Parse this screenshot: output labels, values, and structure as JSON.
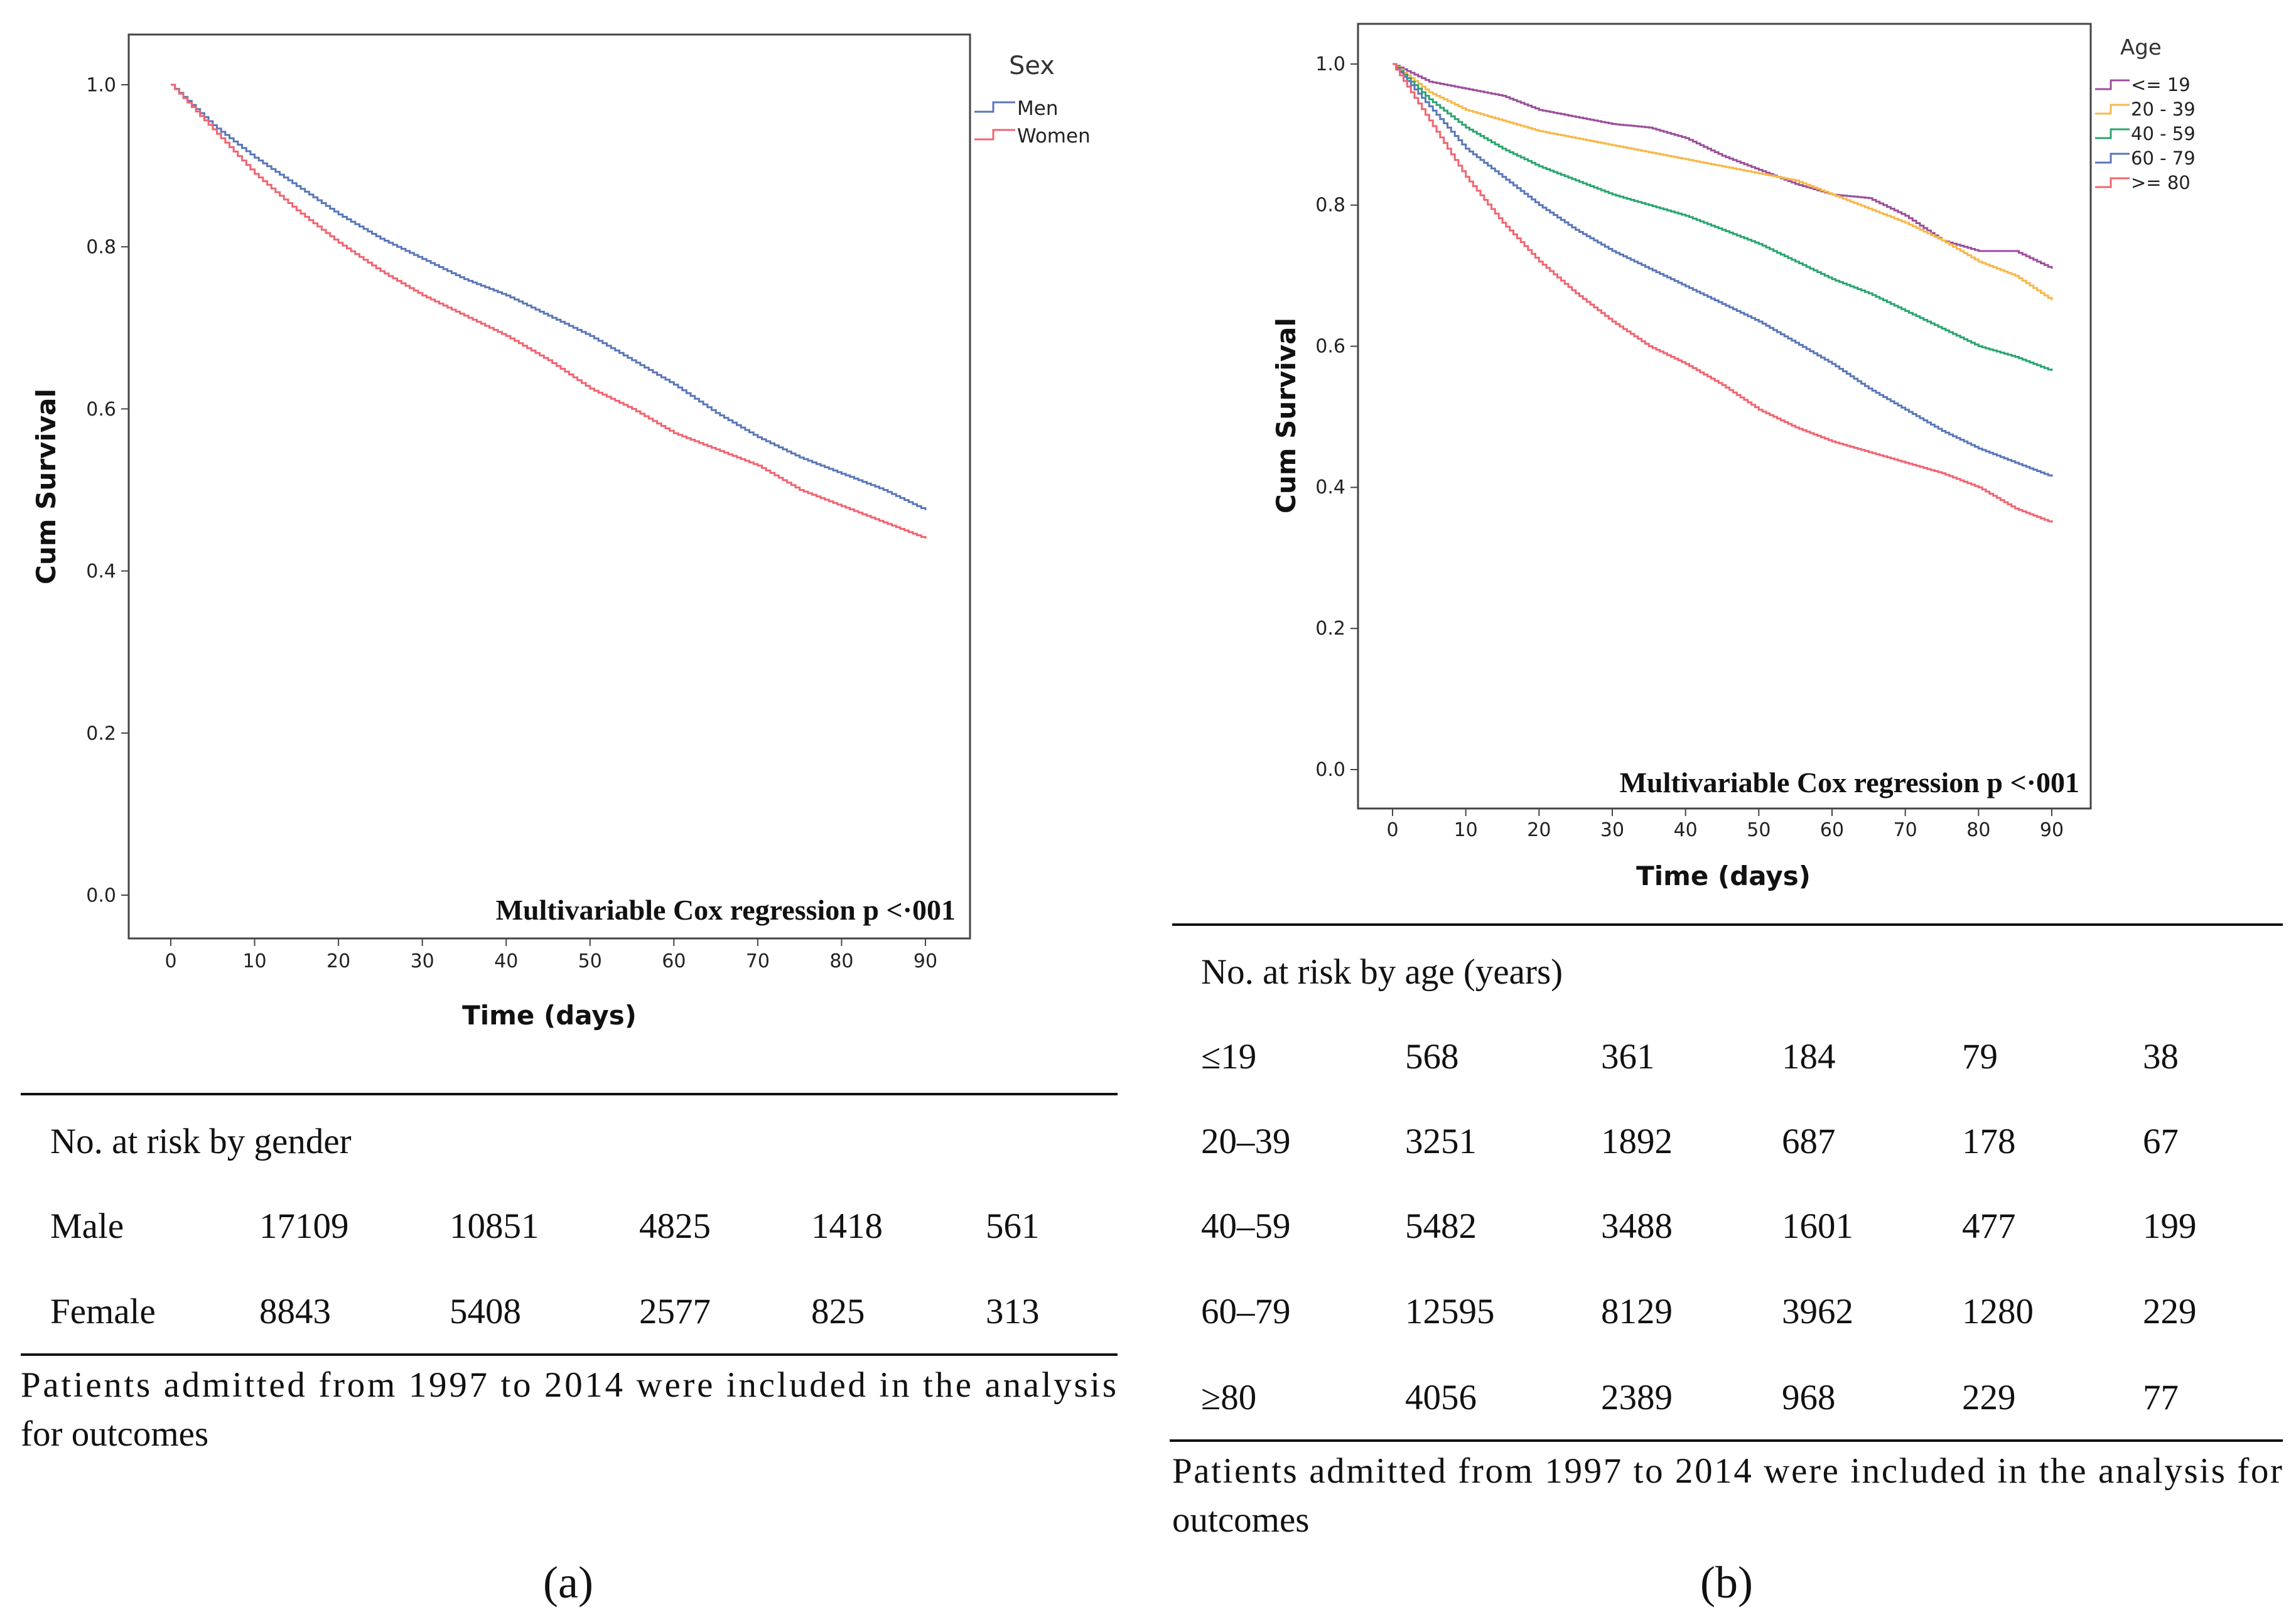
{
  "chart_data": [
    {
      "panel": "a",
      "type": "line",
      "step": true,
      "xlabel": "Time (days)",
      "ylabel": "Cum Survival",
      "xlim": [
        0,
        90
      ],
      "ylim": [
        0,
        1
      ],
      "xticks": [
        "0",
        "10",
        "20",
        "30",
        "40",
        "50",
        "60",
        "70",
        "80",
        "90"
      ],
      "yticks": [
        "0.0",
        "0.2",
        "0.4",
        "0.6",
        "0.8",
        "1.0"
      ],
      "legend_title": "Sex",
      "legend_position": "top-right outside",
      "annotation": "Multivariable Cox regression p <·001",
      "x": [
        0,
        5,
        10,
        15,
        20,
        25,
        30,
        35,
        40,
        45,
        50,
        55,
        60,
        65,
        70,
        75,
        80,
        85,
        90
      ],
      "series": [
        {
          "name": "Men",
          "color": "#5a77b8",
          "values": [
            1.0,
            0.95,
            0.91,
            0.875,
            0.84,
            0.81,
            0.785,
            0.76,
            0.74,
            0.715,
            0.69,
            0.66,
            0.63,
            0.595,
            0.565,
            0.54,
            0.52,
            0.5,
            0.475
          ]
        },
        {
          "name": "Women",
          "color": "#f06570",
          "values": [
            1.0,
            0.945,
            0.89,
            0.845,
            0.805,
            0.77,
            0.74,
            0.715,
            0.69,
            0.66,
            0.625,
            0.6,
            0.57,
            0.55,
            0.53,
            0.5,
            0.48,
            0.46,
            0.44
          ]
        }
      ]
    },
    {
      "panel": "b",
      "type": "line",
      "step": true,
      "xlabel": "Time (days)",
      "ylabel": "Cum Survival",
      "xlim": [
        0,
        90
      ],
      "ylim": [
        0,
        1
      ],
      "xticks": [
        "0",
        "10",
        "20",
        "30",
        "40",
        "50",
        "60",
        "70",
        "80",
        "90"
      ],
      "yticks": [
        "0.0",
        "0.2",
        "0.4",
        "0.6",
        "0.8",
        "1.0"
      ],
      "legend_title": "Age",
      "legend_position": "top-right outside",
      "annotation": "Multivariable Cox regression p <·001",
      "x": [
        0,
        5,
        10,
        15,
        20,
        25,
        30,
        35,
        40,
        45,
        50,
        55,
        60,
        65,
        70,
        75,
        80,
        85,
        90
      ],
      "series": [
        {
          "name": "<= 19",
          "color": "#9b4f9b",
          "values": [
            1.0,
            0.975,
            0.965,
            0.955,
            0.935,
            0.925,
            0.915,
            0.91,
            0.895,
            0.87,
            0.85,
            0.83,
            0.815,
            0.81,
            0.785,
            0.75,
            0.735,
            0.735,
            0.71
          ]
        },
        {
          "name": "20 - 39",
          "color": "#f7b84a",
          "values": [
            1.0,
            0.96,
            0.935,
            0.92,
            0.905,
            0.895,
            0.885,
            0.875,
            0.865,
            0.855,
            0.845,
            0.835,
            0.815,
            0.795,
            0.775,
            0.75,
            0.72,
            0.7,
            0.665
          ]
        },
        {
          "name": "40 - 59",
          "color": "#2aa56f",
          "values": [
            1.0,
            0.95,
            0.91,
            0.88,
            0.855,
            0.835,
            0.815,
            0.8,
            0.785,
            0.765,
            0.745,
            0.72,
            0.695,
            0.675,
            0.65,
            0.625,
            0.6,
            0.585,
            0.565
          ]
        },
        {
          "name": "60 - 79",
          "color": "#5a77b8",
          "values": [
            1.0,
            0.94,
            0.88,
            0.84,
            0.8,
            0.765,
            0.735,
            0.71,
            0.685,
            0.66,
            0.635,
            0.605,
            0.575,
            0.54,
            0.51,
            0.48,
            0.455,
            0.435,
            0.415
          ]
        },
        {
          "name": ">= 80",
          "color": "#f06570",
          "values": [
            1.0,
            0.92,
            0.84,
            0.775,
            0.72,
            0.675,
            0.635,
            0.6,
            0.575,
            0.545,
            0.51,
            0.485,
            0.465,
            0.45,
            0.435,
            0.42,
            0.4,
            0.37,
            0.35
          ]
        }
      ]
    }
  ],
  "table_a": {
    "header": "No. at risk by gender",
    "rows": [
      {
        "label": "Male",
        "values": [
          "17109",
          "10851",
          "4825",
          "1418",
          "561"
        ]
      },
      {
        "label": "Female",
        "values": [
          "8843",
          "5408",
          "2577",
          "825",
          "313"
        ]
      }
    ],
    "note_line1": "Patients admitted from 1997 to 2014 were included in the analysis",
    "note_line2": "for outcomes",
    "panel_label": "(a)"
  },
  "table_b": {
    "header": "No. at risk by age (years)",
    "rows": [
      {
        "label": "≤19",
        "values": [
          "568",
          "361",
          "184",
          "79",
          "38"
        ]
      },
      {
        "label": "20–39",
        "values": [
          "3251",
          "1892",
          "687",
          "178",
          "67"
        ]
      },
      {
        "label": "40–59",
        "values": [
          "5482",
          "3488",
          "1601",
          "477",
          "199"
        ]
      },
      {
        "label": "60–79",
        "values": [
          "12595",
          "8129",
          "3962",
          "1280",
          "229"
        ]
      },
      {
        "label": "≥80",
        "values": [
          "4056",
          "2389",
          "968",
          "229",
          "77"
        ]
      }
    ],
    "note_line1": "Patients admitted from 1997 to 2014 were included in the analysis for",
    "note_line2": "outcomes",
    "panel_label": "(b)"
  }
}
